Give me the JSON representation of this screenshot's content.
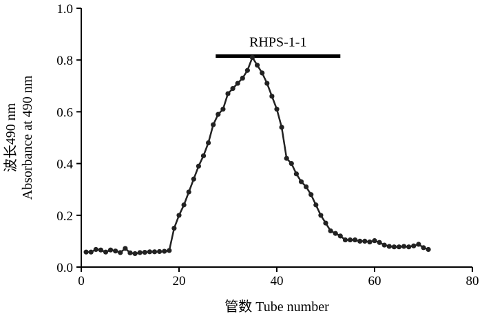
{
  "chart_data": {
    "type": "line",
    "xlabel": "管数  Tube number",
    "ylabel_line1": "波长490 nm",
    "ylabel_line2": "Absorbance at 490 nm",
    "xlim": [
      0,
      80
    ],
    "ylim": [
      0,
      1.0
    ],
    "xticks": [
      "0",
      "20",
      "40",
      "60",
      "80"
    ],
    "yticks": [
      "0.0",
      "0.2",
      "0.4",
      "0.6",
      "0.8",
      "1.0"
    ],
    "grid": false,
    "annotation": {
      "label": "RHPS-1-1",
      "x_start": 27.5,
      "x_end": 53,
      "y": 0.815
    },
    "series": [
      {
        "color": "#222222",
        "x": [
          1,
          2,
          3,
          4,
          5,
          6,
          7,
          8,
          9,
          10,
          11,
          12,
          13,
          14,
          15,
          16,
          17,
          18,
          19,
          20,
          21,
          22,
          23,
          24,
          25,
          26,
          27,
          28,
          29,
          30,
          31,
          32,
          33,
          34,
          35,
          36,
          37,
          38,
          39,
          40,
          41,
          42,
          43,
          44,
          45,
          46,
          47,
          48,
          49,
          50,
          51,
          52,
          53,
          54,
          55,
          56,
          57,
          58,
          59,
          60,
          61,
          62,
          63,
          64,
          65,
          66,
          67,
          68,
          69,
          70,
          71
        ],
        "y": [
          0.058,
          0.058,
          0.068,
          0.066,
          0.058,
          0.066,
          0.062,
          0.056,
          0.072,
          0.055,
          0.052,
          0.056,
          0.057,
          0.059,
          0.059,
          0.06,
          0.061,
          0.064,
          0.15,
          0.2,
          0.24,
          0.29,
          0.34,
          0.39,
          0.43,
          0.48,
          0.55,
          0.59,
          0.61,
          0.67,
          0.69,
          0.71,
          0.73,
          0.76,
          0.81,
          0.78,
          0.75,
          0.71,
          0.66,
          0.61,
          0.54,
          0.42,
          0.4,
          0.36,
          0.33,
          0.31,
          0.28,
          0.24,
          0.2,
          0.17,
          0.14,
          0.13,
          0.12,
          0.105,
          0.105,
          0.105,
          0.1,
          0.1,
          0.097,
          0.102,
          0.095,
          0.085,
          0.08,
          0.078,
          0.078,
          0.08,
          0.078,
          0.082,
          0.088,
          0.075,
          0.068
        ]
      }
    ]
  }
}
